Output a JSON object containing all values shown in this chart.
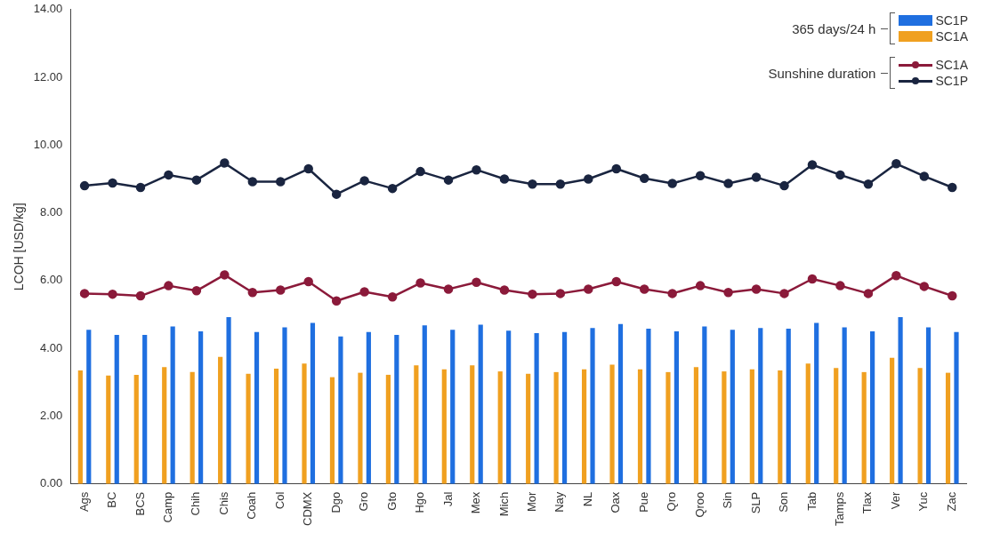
{
  "chart_data": {
    "type": "bar",
    "ylabel": "LCOH [USD/kg]",
    "categories": [
      "Ags",
      "BC",
      "BCS",
      "Camp",
      "Chih",
      "Chis",
      "Coah",
      "Col",
      "CDMX",
      "Dgo",
      "Gro",
      "Gto",
      "Hgo",
      "Jal",
      "Mex",
      "Mich",
      "Mor",
      "Nay",
      "NL",
      "Oax",
      "Pue",
      "Qro",
      "Qroo",
      "Sin",
      "SLP",
      "Son",
      "Tab",
      "Tamps",
      "Tlax",
      "Ver",
      "Yuc",
      "Zac"
    ],
    "series": [
      {
        "name": "SC1A",
        "color": "#f0a020",
        "values": [
          3.35,
          3.2,
          3.22,
          3.45,
          3.3,
          3.75,
          3.25,
          3.4,
          3.55,
          3.15,
          3.28,
          3.22,
          3.5,
          3.38,
          3.5,
          3.32,
          3.25,
          3.3,
          3.38,
          3.52,
          3.38,
          3.3,
          3.45,
          3.32,
          3.38,
          3.35,
          3.55,
          3.42,
          3.3,
          3.72,
          3.42,
          3.28
        ]
      },
      {
        "name": "SC1P",
        "color": "#1f6fe0",
        "values": [
          4.55,
          4.4,
          4.4,
          4.65,
          4.5,
          4.92,
          4.48,
          4.62,
          4.75,
          4.35,
          4.48,
          4.4,
          4.68,
          4.55,
          4.7,
          4.52,
          4.45,
          4.48,
          4.6,
          4.72,
          4.58,
          4.5,
          4.65,
          4.55,
          4.6,
          4.58,
          4.75,
          4.62,
          4.5,
          4.92,
          4.62,
          4.48
        ]
      },
      {
        "name": "SC1A",
        "type": "line",
        "color": "#8b1a3a",
        "values": [
          5.62,
          5.6,
          5.55,
          5.85,
          5.7,
          6.17,
          5.65,
          5.72,
          5.97,
          5.4,
          5.67,
          5.52,
          5.93,
          5.75,
          5.95,
          5.72,
          5.6,
          5.62,
          5.75,
          5.97,
          5.75,
          5.62,
          5.85,
          5.65,
          5.75,
          5.62,
          6.05,
          5.85,
          5.62,
          6.15,
          5.83,
          5.55
        ]
      },
      {
        "name": "SC1P",
        "type": "line",
        "color": "#1a2540",
        "values": [
          8.8,
          8.88,
          8.75,
          9.12,
          8.97,
          9.47,
          8.92,
          8.92,
          9.3,
          8.55,
          8.95,
          8.72,
          9.22,
          8.97,
          9.27,
          9.0,
          8.85,
          8.85,
          9.0,
          9.3,
          9.02,
          8.87,
          9.1,
          8.87,
          9.05,
          8.8,
          9.42,
          9.12,
          8.85,
          9.45,
          9.08,
          8.75
        ]
      }
    ],
    "ylim": [
      0,
      14
    ],
    "yticks": [
      {
        "value": 0,
        "label": "0.00"
      },
      {
        "value": 2,
        "label": "2.00"
      },
      {
        "value": 4,
        "label": "4.00"
      },
      {
        "value": 6,
        "label": "6.00"
      },
      {
        "value": 8,
        "label": "8.00"
      },
      {
        "value": 10,
        "label": "10.00"
      },
      {
        "value": 12,
        "label": "12.00"
      },
      {
        "value": 14,
        "label": "14.00"
      }
    ],
    "annotations": [
      "365 days/24 h",
      "Sunshine duration"
    ],
    "marker": "circle",
    "line_style": "solid",
    "legend": "top right"
  }
}
